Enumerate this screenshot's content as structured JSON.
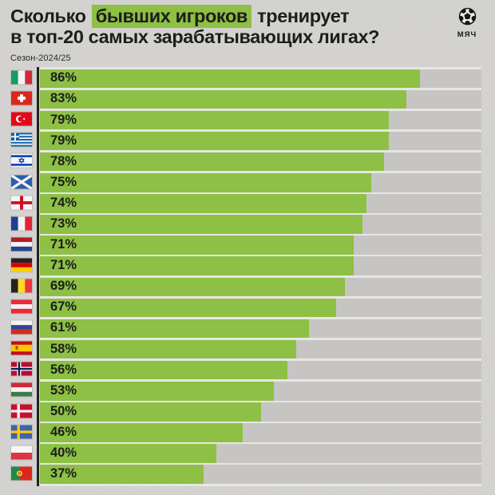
{
  "header": {
    "title": {
      "line1_pre": "Сколько",
      "highlight": "бывших игроков",
      "line1_post": "тренирует",
      "line2": "в топ-20 самых зарабатывающих лигах?"
    },
    "subtitle": "Сезон-2024/25",
    "logo": {
      "text": "МЯЧ",
      "icon": "soccer-ball-icon"
    }
  },
  "colors": {
    "background": "#d4d3d1",
    "bar_green": "#8dc044",
    "track_gray": "#c6c5c3",
    "seam_white": "#e7e6e4",
    "axis_dark": "#222220",
    "text_dark": "#1d1d1b"
  },
  "chart_data": {
    "type": "bar",
    "orientation": "horizontal",
    "title": "Сколько бывших игроков тренирует в топ-20 самых зарабатывающих лигах?",
    "subtitle": "Сезон-2024/25",
    "value_unit": "%",
    "xlim": [
      0,
      100
    ],
    "grid": false,
    "legend": false,
    "rows": [
      {
        "country": "Italy",
        "flag": "italy",
        "value": 86,
        "label": "86%"
      },
      {
        "country": "Switzerland",
        "flag": "switzerland",
        "value": 83,
        "label": "83%"
      },
      {
        "country": "Turkey",
        "flag": "turkey",
        "value": 79,
        "label": "79%"
      },
      {
        "country": "Greece",
        "flag": "greece",
        "value": 79,
        "label": "79%"
      },
      {
        "country": "Israel",
        "flag": "israel",
        "value": 78,
        "label": "78%"
      },
      {
        "country": "Scotland",
        "flag": "scotland",
        "value": 75,
        "label": "75%"
      },
      {
        "country": "England",
        "flag": "england",
        "value": 74,
        "label": "74%"
      },
      {
        "country": "France",
        "flag": "france",
        "value": 73,
        "label": "73%"
      },
      {
        "country": "Netherlands",
        "flag": "netherlands",
        "value": 71,
        "label": "71%"
      },
      {
        "country": "Germany",
        "flag": "germany",
        "value": 71,
        "label": "71%"
      },
      {
        "country": "Belgium",
        "flag": "belgium",
        "value": 69,
        "label": "69%"
      },
      {
        "country": "Austria",
        "flag": "austria",
        "value": 67,
        "label": "67%"
      },
      {
        "country": "Russia",
        "flag": "russia",
        "value": 61,
        "label": "61%"
      },
      {
        "country": "Spain",
        "flag": "spain",
        "value": 58,
        "label": "58%"
      },
      {
        "country": "Norway",
        "flag": "norway",
        "value": 56,
        "label": "56%"
      },
      {
        "country": "Hungary",
        "flag": "hungary",
        "value": 53,
        "label": "53%"
      },
      {
        "country": "Denmark",
        "flag": "denmark",
        "value": 50,
        "label": "50%"
      },
      {
        "country": "Sweden",
        "flag": "sweden",
        "value": 46,
        "label": "46%"
      },
      {
        "country": "Poland",
        "flag": "poland",
        "value": 40,
        "label": "40%"
      },
      {
        "country": "Portugal",
        "flag": "portugal",
        "value": 37,
        "label": "37%"
      }
    ]
  }
}
